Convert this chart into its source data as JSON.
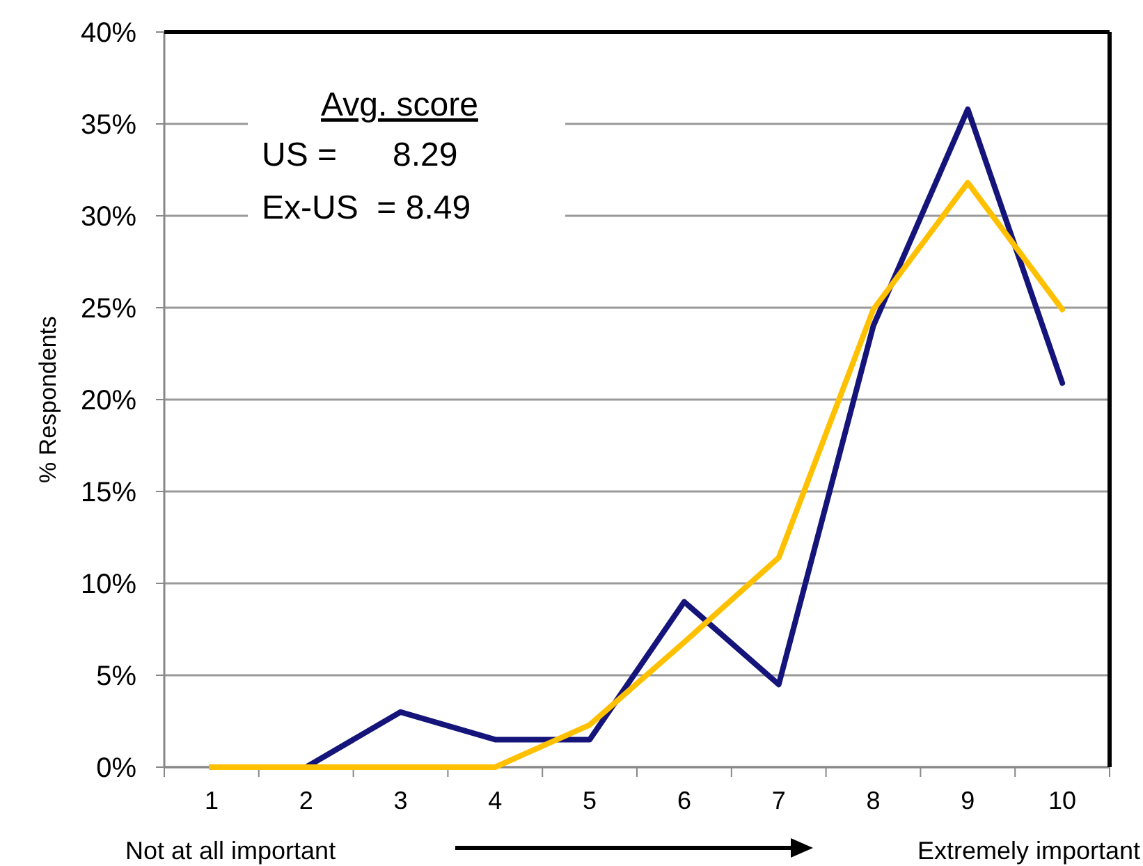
{
  "chart_data": {
    "type": "line",
    "ylabel": "% Respondents",
    "categories": [
      "1",
      "2",
      "3",
      "4",
      "5",
      "6",
      "7",
      "8",
      "9",
      "10"
    ],
    "series": [
      {
        "color": "#14147a",
        "values": [
          0,
          0,
          3.0,
          1.5,
          1.5,
          9.0,
          4.5,
          24.0,
          35.8,
          20.9
        ]
      },
      {
        "color": "#ffc000",
        "values": [
          0,
          0,
          0,
          0,
          2.3,
          6.8,
          11.4,
          24.9,
          31.8,
          24.9
        ]
      }
    ],
    "ylim": [
      0,
      40
    ],
    "yticks": [
      {
        "value": 0,
        "label": "0%"
      },
      {
        "value": 5,
        "label": "5%"
      },
      {
        "value": 10,
        "label": "10%"
      },
      {
        "value": 15,
        "label": "15%"
      },
      {
        "value": 20,
        "label": "20%"
      },
      {
        "value": 25,
        "label": "25%"
      },
      {
        "value": 30,
        "label": "30%"
      },
      {
        "value": 35,
        "label": "35%"
      },
      {
        "value": 40,
        "label": "40%"
      }
    ],
    "grid": "y",
    "marker": "none",
    "line_style": "solid",
    "annotations": [
      "Avg. score",
      "US =      8.29",
      "Ex-US  = 8.49",
      "Not at all important",
      "Extremely important"
    ]
  }
}
